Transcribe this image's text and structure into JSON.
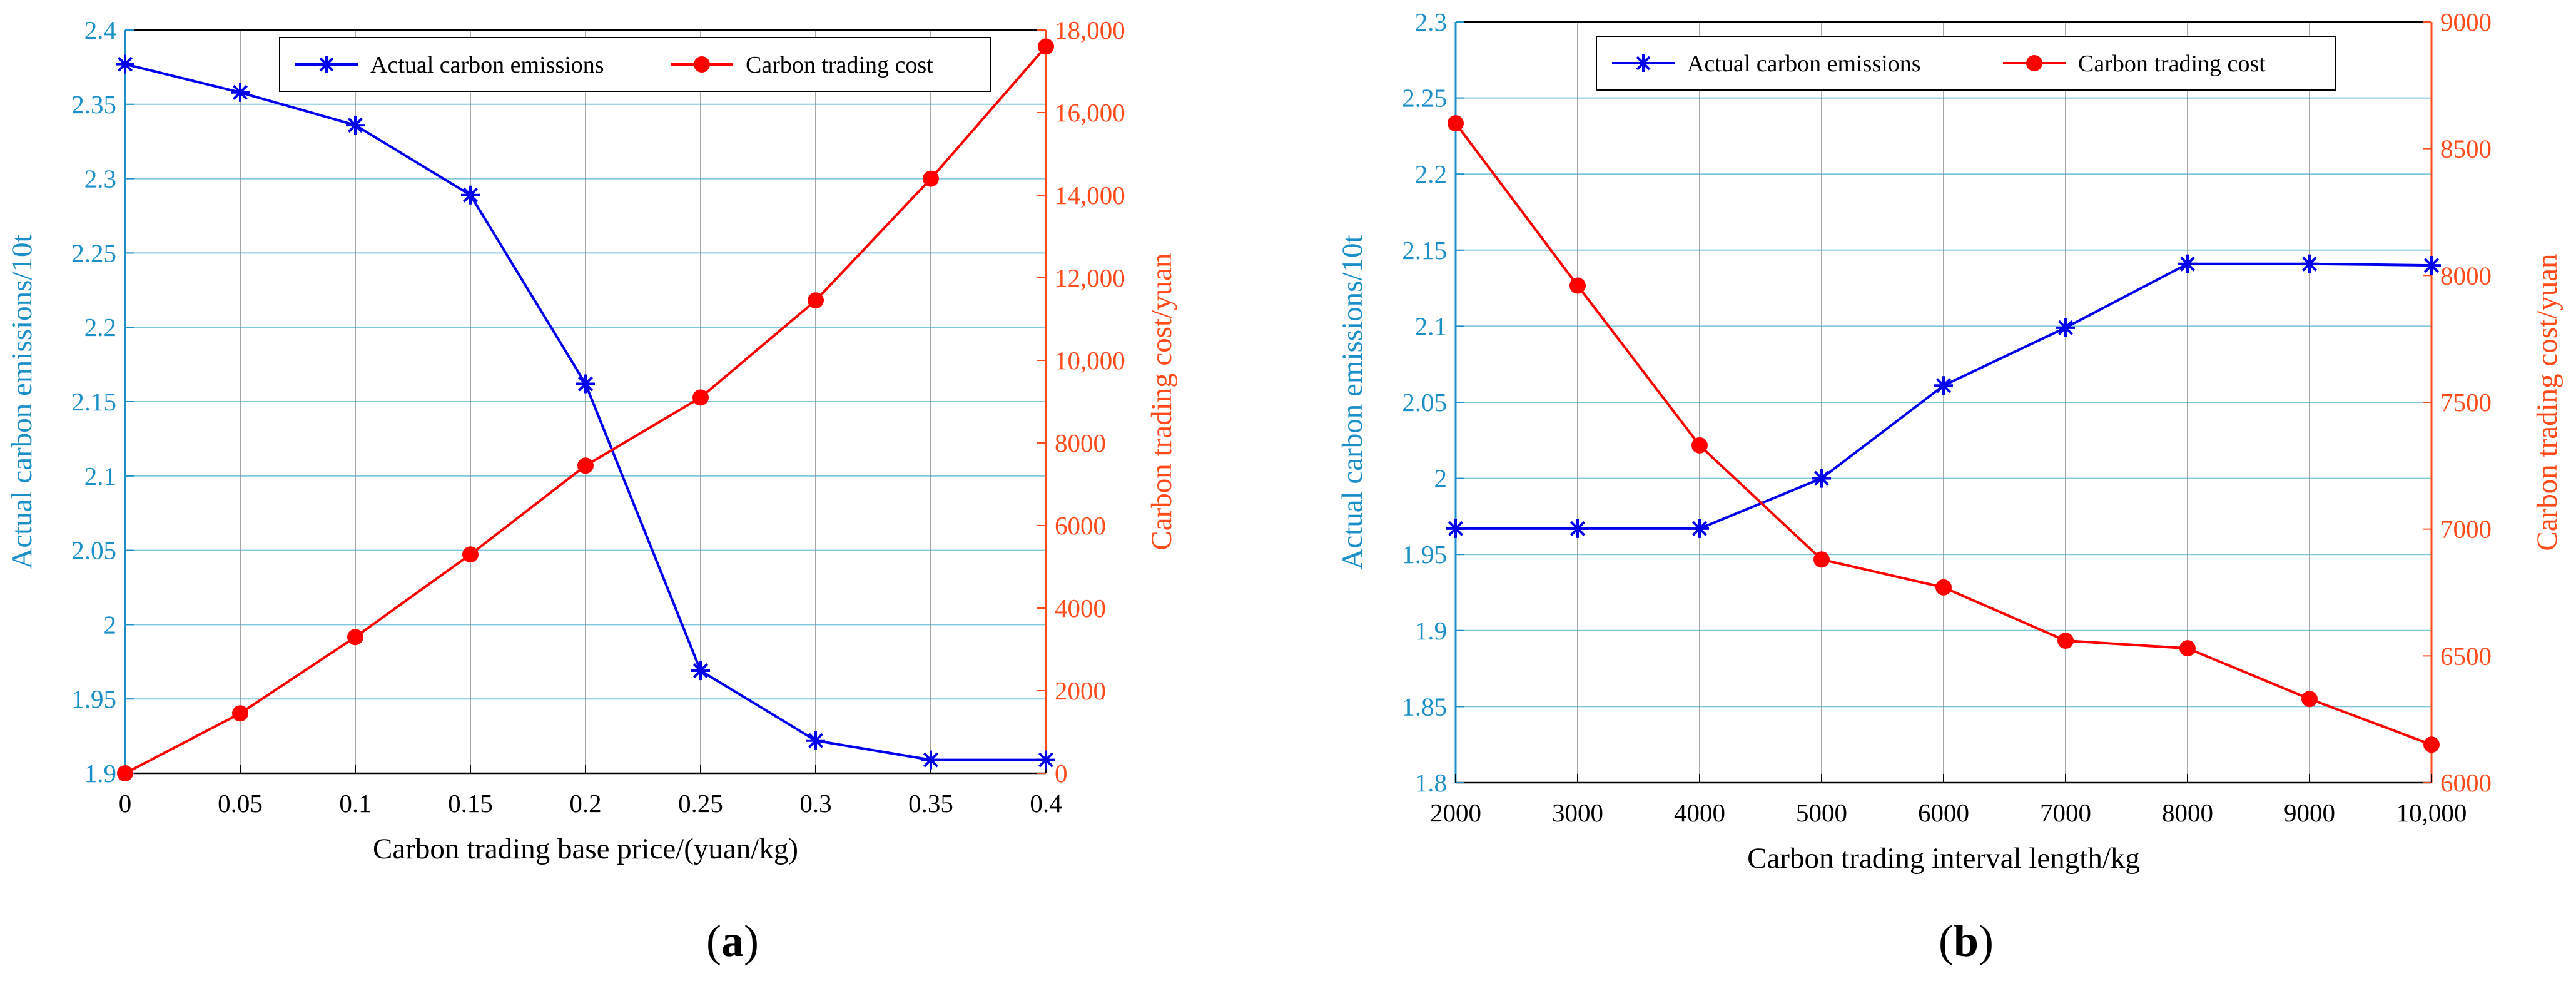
{
  "colors": {
    "left_axis": "#1a8fc9",
    "right_axis": "#ff4a1a",
    "emission_series": "#0000ee",
    "cost_series": "#ff0000",
    "grid_horizontal": "#7ec8de",
    "grid_vertical": "#8a8a8a"
  },
  "chart_data": [
    {
      "type": "line",
      "panel_label_open": "(",
      "panel_label_letter": "a",
      "panel_label_close": ")",
      "xlabel": "Carbon trading base price/(yuan/kg)",
      "ylabel_left": "Actual carbon emissions/10t",
      "ylabel_right": "Carbon trading cost/yuan",
      "xlim": [
        0,
        0.4
      ],
      "ylim_left": [
        1.9,
        2.4
      ],
      "ylim_right": [
        0,
        18000
      ],
      "x_ticks": [
        0,
        0.05,
        0.1,
        0.15,
        0.2,
        0.25,
        0.3,
        0.35,
        0.4
      ],
      "x_tick_labels": [
        "0",
        "0.05",
        "0.1",
        "0.15",
        "0.2",
        "0.25",
        "0.3",
        "0.35",
        "0.4"
      ],
      "y_left_ticks": [
        1.9,
        1.95,
        2,
        2.05,
        2.1,
        2.15,
        2.2,
        2.25,
        2.3,
        2.35,
        2.4
      ],
      "y_left_tick_labels": [
        "1.9",
        "1.95",
        "2",
        "2.05",
        "2.1",
        "2.15",
        "2.2",
        "2.25",
        "2.3",
        "2.35",
        "2.4"
      ],
      "y_right_ticks": [
        0,
        2000,
        4000,
        6000,
        8000,
        10000,
        12000,
        14000,
        16000,
        18000
      ],
      "y_right_tick_labels": [
        "0",
        "2000",
        "4000",
        "6000",
        "8000",
        "10,000",
        "12,000",
        "14,000",
        "16,000",
        "18,000"
      ],
      "grid": true,
      "legend_position": "top-center",
      "series": [
        {
          "name": "Actual carbon emissions",
          "axis": "left",
          "marker": "asterisk",
          "x": [
            0,
            0.05,
            0.1,
            0.15,
            0.2,
            0.25,
            0.3,
            0.35,
            0.4
          ],
          "values": [
            2.377,
            2.358,
            2.336,
            2.289,
            2.162,
            1.969,
            1.922,
            1.909,
            1.909
          ]
        },
        {
          "name": "Carbon trading cost",
          "axis": "right",
          "marker": "circle",
          "x": [
            0,
            0.05,
            0.1,
            0.15,
            0.2,
            0.25,
            0.3,
            0.35,
            0.4
          ],
          "values": [
            0,
            1450,
            3300,
            5300,
            7450,
            9100,
            11450,
            14400,
            17600
          ]
        }
      ]
    },
    {
      "type": "line",
      "panel_label_open": "(",
      "panel_label_letter": "b",
      "panel_label_close": ")",
      "xlabel": "Carbon trading interval length/kg",
      "ylabel_left": "Actual carbon emissions/10t",
      "ylabel_right": "Carbon trading cost/yuan",
      "xlim": [
        2000,
        10000
      ],
      "ylim_left": [
        1.8,
        2.3
      ],
      "ylim_right": [
        6000,
        9000
      ],
      "x_ticks": [
        2000,
        3000,
        4000,
        5000,
        6000,
        7000,
        8000,
        9000,
        10000
      ],
      "x_tick_labels": [
        "2000",
        "3000",
        "4000",
        "5000",
        "6000",
        "7000",
        "8000",
        "9000",
        "10,000"
      ],
      "y_left_ticks": [
        1.8,
        1.85,
        1.9,
        1.95,
        2,
        2.05,
        2.1,
        2.15,
        2.2,
        2.25,
        2.3
      ],
      "y_left_tick_labels": [
        "1.8",
        "1.85",
        "1.9",
        "1.95",
        "2",
        "2.05",
        "2.1",
        "2.15",
        "2.2",
        "2.25",
        "2.3"
      ],
      "y_right_ticks": [
        6000,
        6500,
        7000,
        7500,
        8000,
        8500,
        9000
      ],
      "y_right_tick_labels": [
        "6000",
        "6500",
        "7000",
        "7500",
        "8000",
        "8500",
        "9000"
      ],
      "grid": true,
      "legend_position": "top-center",
      "series": [
        {
          "name": "Actual carbon emissions",
          "axis": "left",
          "marker": "asterisk",
          "x": [
            2000,
            3000,
            4000,
            5000,
            6000,
            7000,
            8000,
            9000,
            10000
          ],
          "values": [
            1.967,
            1.967,
            1.967,
            2.0,
            2.061,
            2.099,
            2.141,
            2.141,
            2.14
          ]
        },
        {
          "name": "Carbon trading cost",
          "axis": "right",
          "marker": "circle",
          "x": [
            2000,
            3000,
            4000,
            5000,
            6000,
            7000,
            8000,
            9000,
            10000
          ],
          "values": [
            8600,
            7960,
            7330,
            6880,
            6770,
            6560,
            6530,
            6330,
            6150
          ]
        }
      ]
    }
  ]
}
